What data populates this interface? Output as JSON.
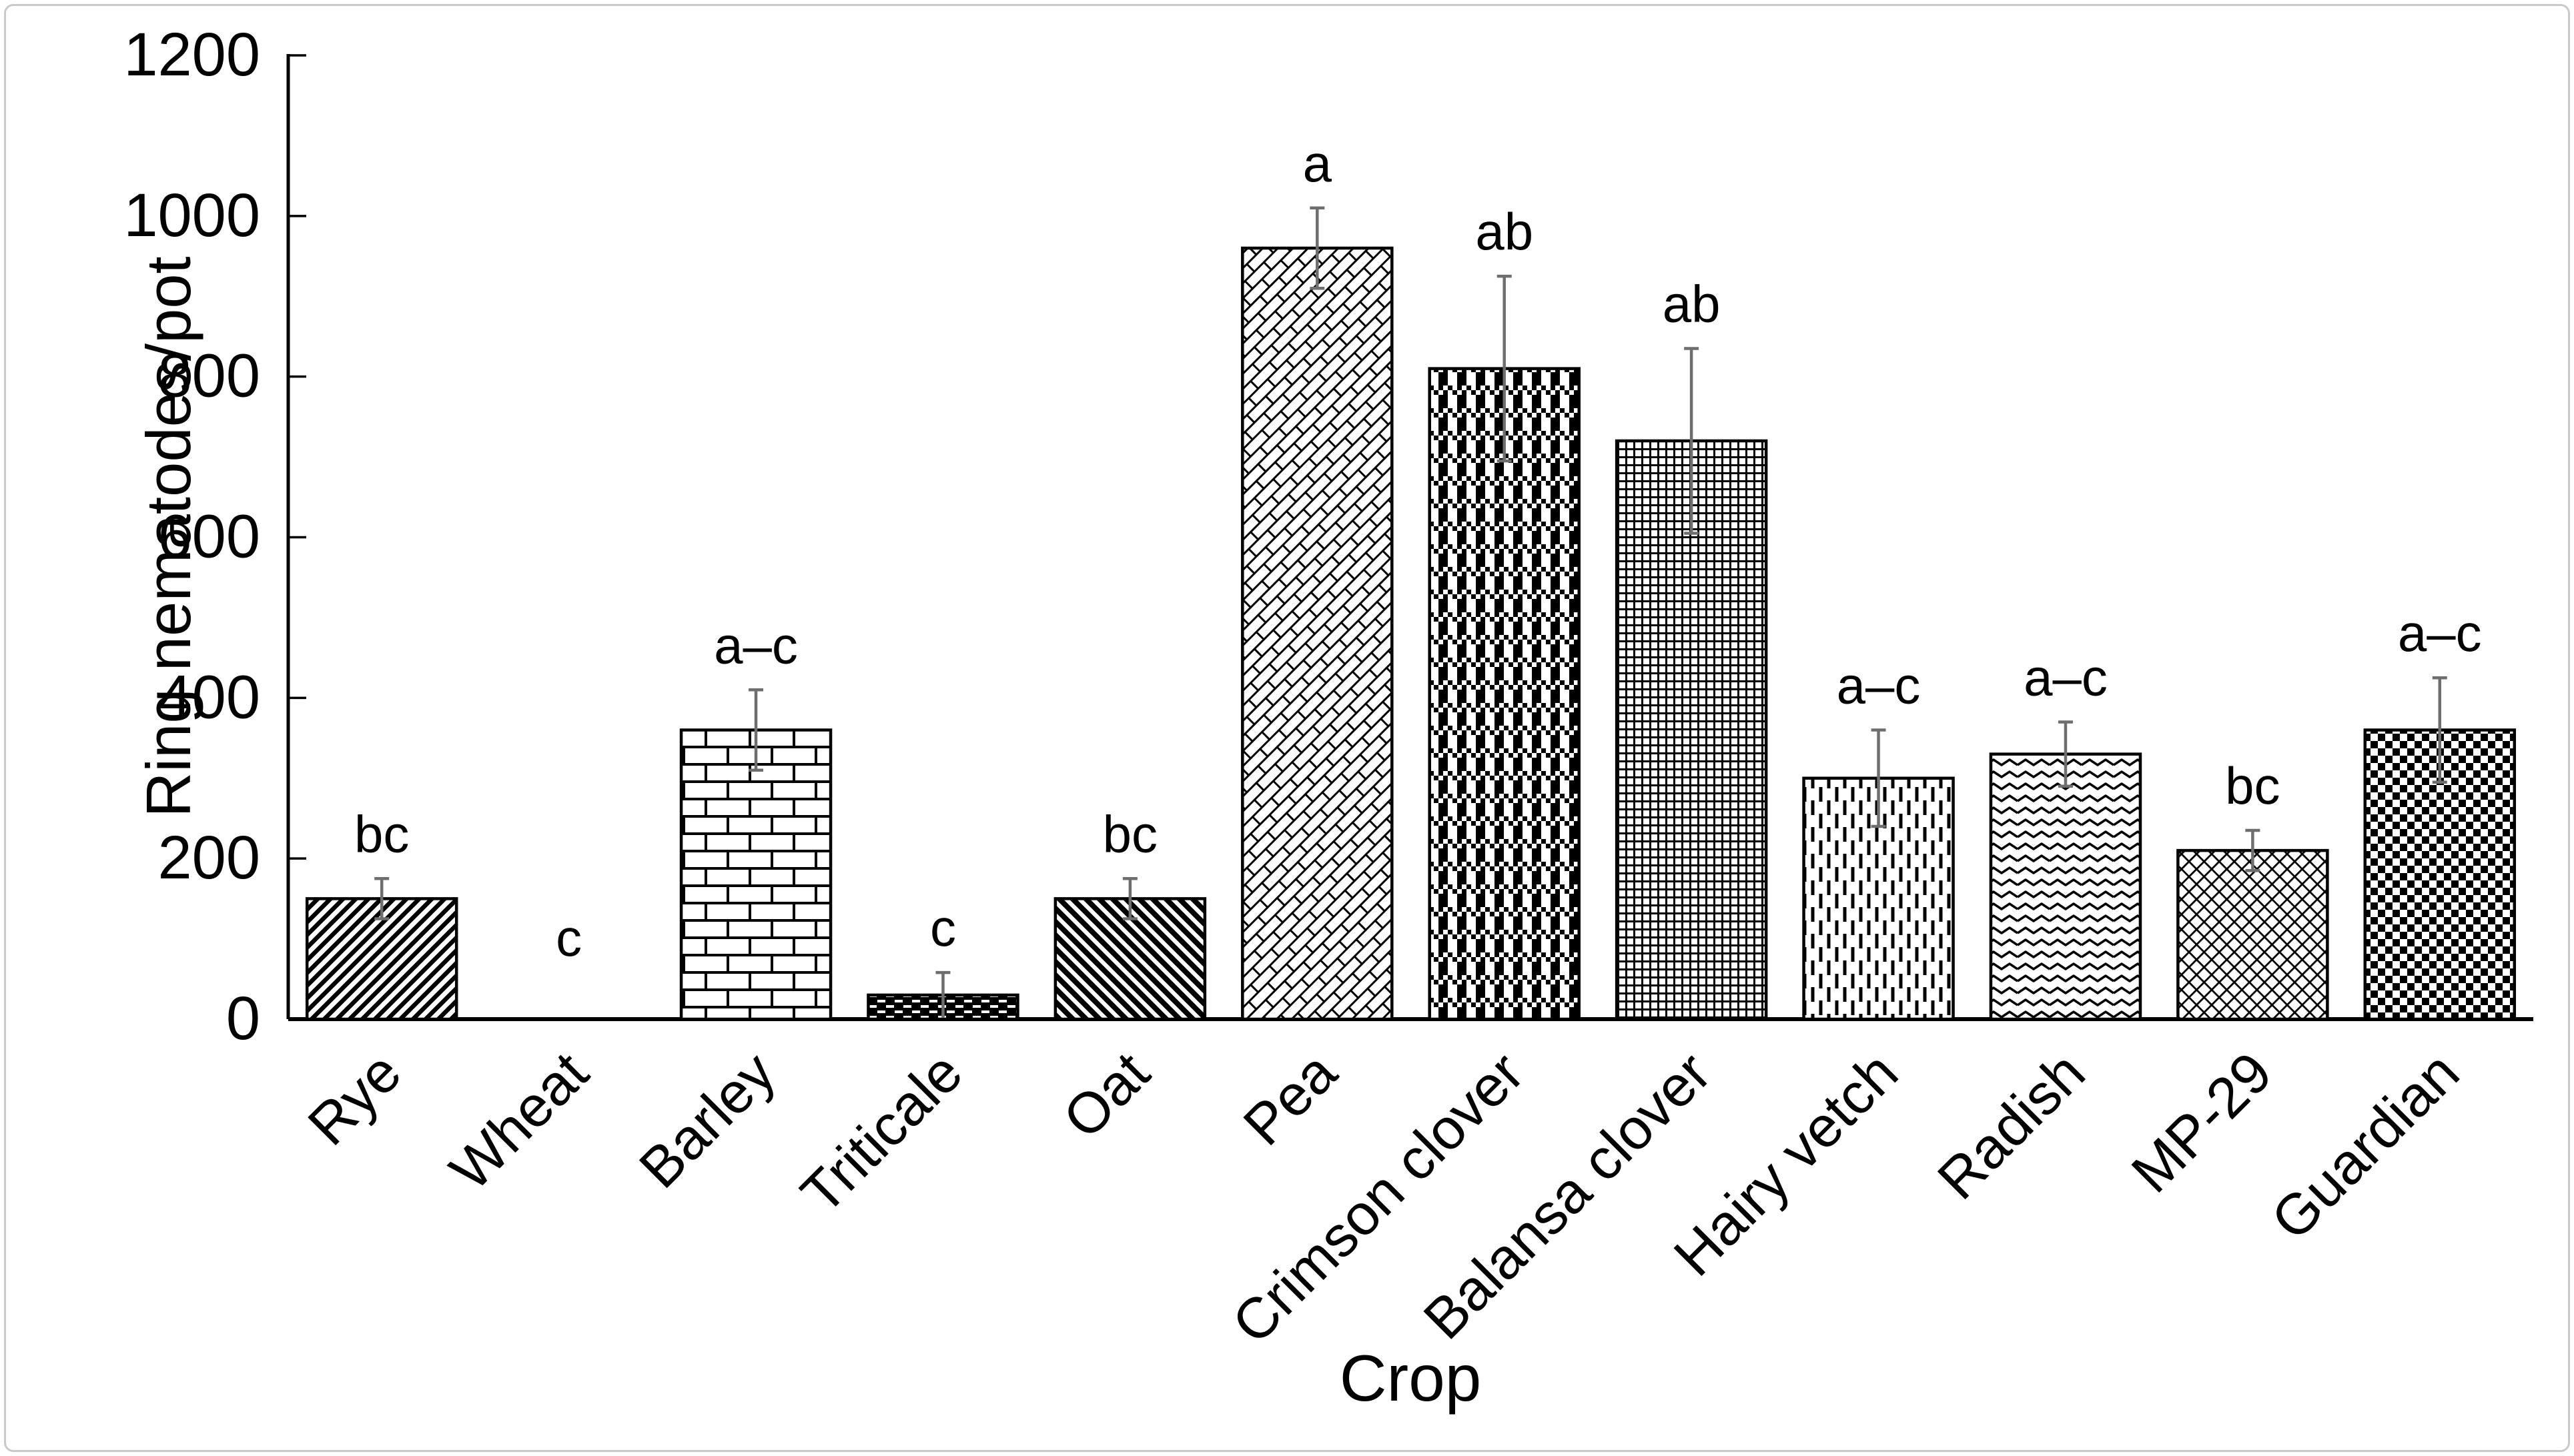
{
  "figure": {
    "background": "#ffffff",
    "frame_border_color": "#c6cacd"
  },
  "chart_data": {
    "type": "bar",
    "title": "",
    "xlabel": "Crop",
    "ylabel": "Ring nematodes/pot",
    "ylim": [
      0,
      1200
    ],
    "ytick_step": 200,
    "ytick_labels": [
      "0",
      "200",
      "400",
      "600",
      "800",
      "1000",
      "1200"
    ],
    "grid": false,
    "legend": "none",
    "bar_fill_style": "black-and-white hatch patterns on white",
    "bar_outline_color": "#000000",
    "error_bar_color": "#6e6e6e",
    "categories": [
      "Rye",
      "Wheat",
      "Barley",
      "Triticale",
      "Oat",
      "Pea",
      "Crimson clover",
      "Balansa clover",
      "Hairy vetch",
      "Radish",
      "MP-29",
      "Guardian"
    ],
    "values": [
      150,
      0,
      360,
      30,
      150,
      960,
      810,
      720,
      300,
      330,
      210,
      360
    ],
    "errors": [
      25,
      0,
      50,
      28,
      25,
      50,
      115,
      115,
      60,
      40,
      25,
      65
    ],
    "sig_letters": [
      "bc",
      "c",
      "a–c",
      "c",
      "bc",
      "a",
      "ab",
      "ab",
      "a–c",
      "a–c",
      "bc",
      "a–c"
    ],
    "patterns": [
      "diagonal-up",
      "none",
      "brick",
      "inverse-dash",
      "diagonal-down",
      "diagonal-brick",
      "plaid",
      "grid",
      "vertical-dash",
      "zigzag",
      "diamond-lattice",
      "checkerboard"
    ]
  }
}
